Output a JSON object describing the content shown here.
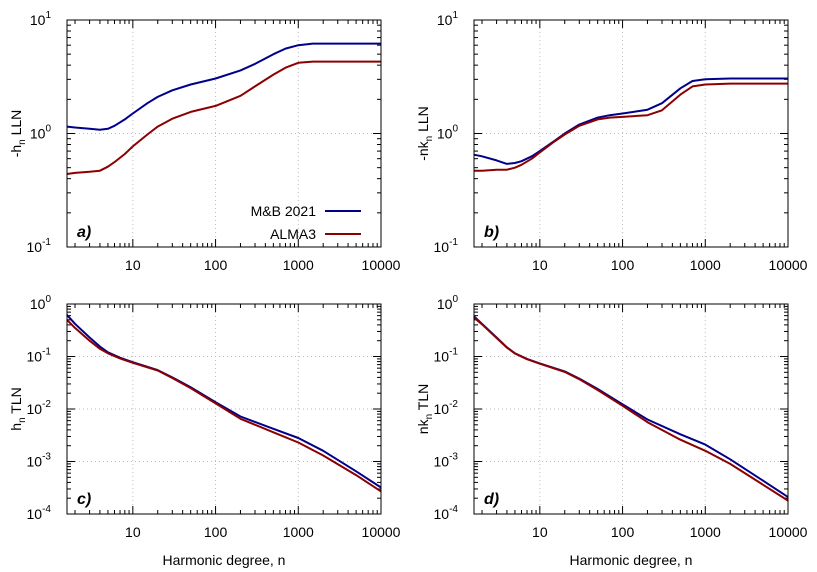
{
  "chart_data": [
    {
      "id": "a",
      "type": "line",
      "panel_label": "a)",
      "ylabel_base": "-h",
      "ylabel_sub": "n",
      "ylabel_rest": " LLN",
      "xlabel": "",
      "xscale": "log",
      "yscale": "log",
      "xlim": [
        1.6,
        10000
      ],
      "ylim": [
        0.1,
        10
      ],
      "xticks": [
        "10",
        "100",
        "1000",
        "10000"
      ],
      "ytick_mantissa": "10",
      "ytick_exponents": [
        "-1",
        "0",
        "1"
      ],
      "grid": true,
      "legend": {
        "position": "lower-right",
        "entries": [
          "M&B 2021",
          "ALMA3"
        ]
      },
      "series": [
        {
          "name": "M&B 2021",
          "color": "#00008b",
          "x": [
            1.6,
            2,
            3,
            4,
            5,
            6,
            8,
            10,
            15,
            20,
            30,
            50,
            100,
            200,
            300,
            500,
            700,
            1000,
            1500,
            2000,
            5000,
            10000
          ],
          "y": [
            1.15,
            1.13,
            1.1,
            1.08,
            1.1,
            1.17,
            1.33,
            1.5,
            1.85,
            2.1,
            2.4,
            2.7,
            3.05,
            3.6,
            4.1,
            5.0,
            5.6,
            6.0,
            6.2,
            6.2,
            6.2,
            6.2
          ]
        },
        {
          "name": "ALMA3",
          "color": "#8b0000",
          "x": [
            1.6,
            2,
            3,
            4,
            5,
            6,
            8,
            10,
            15,
            20,
            30,
            50,
            100,
            200,
            300,
            500,
            700,
            1000,
            1500,
            2000,
            5000,
            10000
          ],
          "y": [
            0.44,
            0.45,
            0.46,
            0.47,
            0.51,
            0.56,
            0.66,
            0.77,
            0.98,
            1.15,
            1.35,
            1.55,
            1.75,
            2.15,
            2.6,
            3.3,
            3.8,
            4.2,
            4.3,
            4.3,
            4.3,
            4.3
          ]
        }
      ]
    },
    {
      "id": "b",
      "type": "line",
      "panel_label": "b)",
      "ylabel_base": "-nk",
      "ylabel_sub": "n",
      "ylabel_rest": " LLN",
      "xlabel": "",
      "xscale": "log",
      "yscale": "log",
      "xlim": [
        1.6,
        10000
      ],
      "ylim": [
        0.1,
        10
      ],
      "xticks": [
        "10",
        "100",
        "1000",
        "10000"
      ],
      "ytick_mantissa": "10",
      "ytick_exponents": [
        "-1",
        "0",
        "1"
      ],
      "grid": true,
      "series": [
        {
          "name": "M&B 2021",
          "color": "#00008b",
          "x": [
            1.6,
            2,
            3,
            4,
            5,
            6,
            8,
            10,
            15,
            20,
            30,
            50,
            70,
            100,
            200,
            300,
            500,
            700,
            1000,
            2000,
            5000,
            10000
          ],
          "y": [
            0.65,
            0.63,
            0.58,
            0.54,
            0.55,
            0.57,
            0.63,
            0.7,
            0.86,
            1.0,
            1.2,
            1.38,
            1.45,
            1.5,
            1.62,
            1.85,
            2.5,
            2.9,
            3.0,
            3.05,
            3.05,
            3.05
          ]
        },
        {
          "name": "ALMA3",
          "color": "#8b0000",
          "x": [
            1.6,
            2,
            3,
            4,
            5,
            6,
            8,
            10,
            15,
            20,
            30,
            50,
            70,
            100,
            200,
            300,
            500,
            700,
            1000,
            2000,
            5000,
            10000
          ],
          "y": [
            0.47,
            0.47,
            0.48,
            0.48,
            0.5,
            0.53,
            0.6,
            0.68,
            0.85,
            0.98,
            1.17,
            1.33,
            1.38,
            1.4,
            1.45,
            1.6,
            2.2,
            2.6,
            2.7,
            2.75,
            2.75,
            2.75
          ]
        }
      ]
    },
    {
      "id": "c",
      "type": "line",
      "panel_label": "c)",
      "ylabel_base": "h",
      "ylabel_sub": "n",
      "ylabel_rest": " TLN",
      "xlabel": "Harmonic degree, n",
      "xscale": "log",
      "yscale": "log",
      "xlim": [
        1.6,
        10000
      ],
      "ylim": [
        0.0001,
        1
      ],
      "xticks": [
        "10",
        "100",
        "1000",
        "10000"
      ],
      "ytick_mantissa": "10",
      "ytick_exponents": [
        "-4",
        "-3",
        "-2",
        "-1",
        "0"
      ],
      "grid": true,
      "series": [
        {
          "name": "M&B 2021",
          "color": "#00008b",
          "x": [
            1.6,
            2,
            3,
            4,
            5,
            7,
            10,
            20,
            30,
            50,
            100,
            200,
            500,
            1000,
            2000,
            5000,
            10000
          ],
          "y": [
            0.62,
            0.42,
            0.23,
            0.155,
            0.12,
            0.095,
            0.078,
            0.055,
            0.04,
            0.026,
            0.0135,
            0.0072,
            0.0042,
            0.0028,
            0.0016,
            0.00065,
            0.00032
          ]
        },
        {
          "name": "ALMA3",
          "color": "#8b0000",
          "x": [
            1.6,
            2,
            3,
            4,
            5,
            7,
            10,
            20,
            30,
            50,
            100,
            200,
            500,
            1000,
            2000,
            5000,
            10000
          ],
          "y": [
            0.5,
            0.35,
            0.2,
            0.14,
            0.115,
            0.092,
            0.076,
            0.054,
            0.039,
            0.025,
            0.0128,
            0.0065,
            0.0036,
            0.0023,
            0.0013,
            0.00055,
            0.00027
          ]
        }
      ]
    },
    {
      "id": "d",
      "type": "line",
      "panel_label": "d)",
      "ylabel_base": "nk",
      "ylabel_sub": "n",
      "ylabel_rest": " TLN",
      "xlabel": "Harmonic degree, n",
      "xscale": "log",
      "yscale": "log",
      "xlim": [
        1.6,
        10000
      ],
      "ylim": [
        0.0001,
        1
      ],
      "xticks": [
        "10",
        "100",
        "1000",
        "10000"
      ],
      "ytick_mantissa": "10",
      "ytick_exponents": [
        "-4",
        "-3",
        "-2",
        "-1",
        "0"
      ],
      "grid": true,
      "series": [
        {
          "name": "M&B 2021",
          "color": "#00008b",
          "x": [
            1.6,
            2,
            3,
            4,
            5,
            7,
            10,
            20,
            30,
            50,
            100,
            200,
            500,
            1000,
            2000,
            5000,
            10000
          ],
          "y": [
            0.58,
            0.42,
            0.23,
            0.15,
            0.115,
            0.09,
            0.074,
            0.052,
            0.038,
            0.024,
            0.0123,
            0.0063,
            0.0033,
            0.0021,
            0.0011,
            0.00043,
            0.00021
          ]
        },
        {
          "name": "ALMA3",
          "color": "#8b0000",
          "x": [
            1.6,
            2,
            3,
            4,
            5,
            7,
            10,
            20,
            30,
            50,
            100,
            200,
            500,
            1000,
            2000,
            5000,
            10000
          ],
          "y": [
            0.55,
            0.41,
            0.225,
            0.148,
            0.114,
            0.089,
            0.073,
            0.051,
            0.037,
            0.023,
            0.0115,
            0.0056,
            0.0026,
            0.0016,
            0.0009,
            0.00036,
            0.00018
          ]
        }
      ]
    }
  ]
}
